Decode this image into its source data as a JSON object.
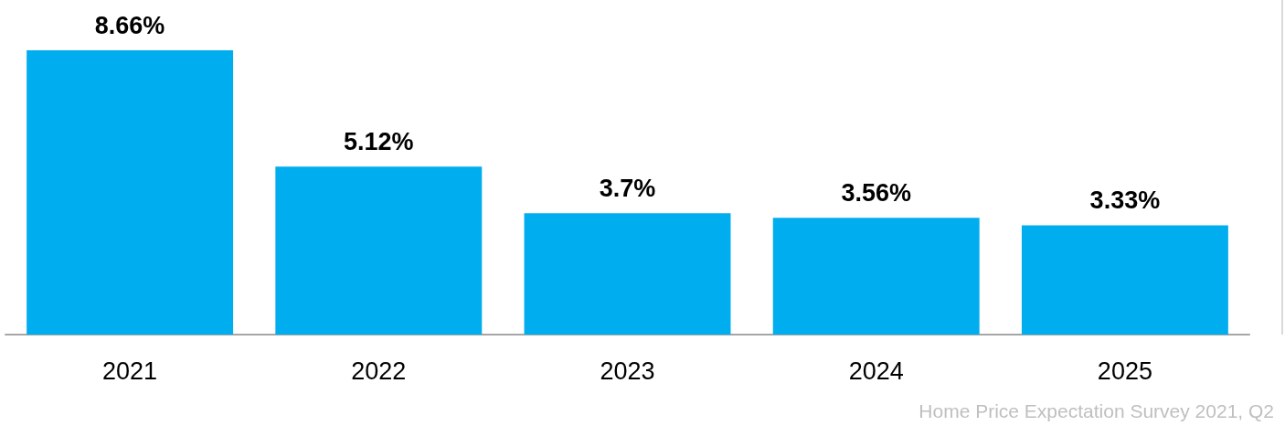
{
  "chart_data": {
    "type": "bar",
    "categories": [
      "2021",
      "2022",
      "2023",
      "2024",
      "2025"
    ],
    "values": [
      8.66,
      5.12,
      3.7,
      3.56,
      3.33
    ],
    "value_labels": [
      "8.66%",
      "5.12%",
      "3.7%",
      "3.56%",
      "3.33%"
    ],
    "color": "#00aeef",
    "annotations": [
      "Home Price Expectation Survey 2021, Q2"
    ]
  }
}
